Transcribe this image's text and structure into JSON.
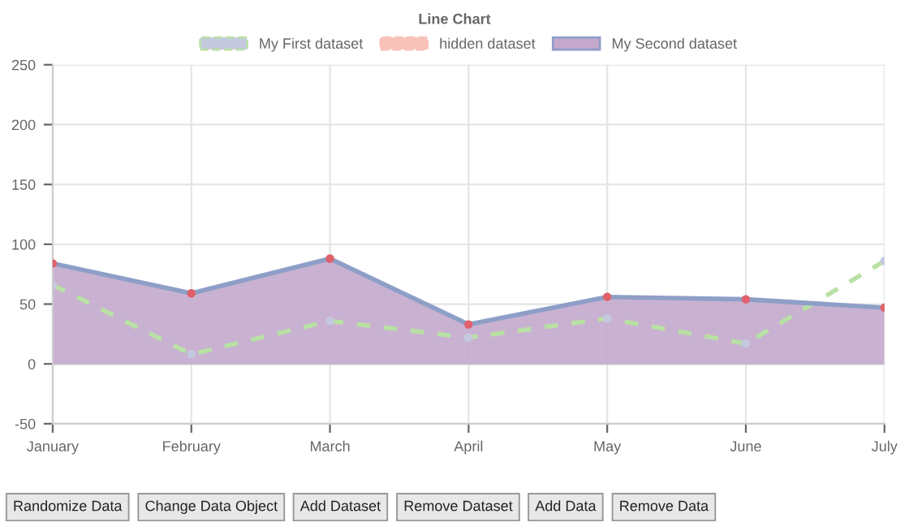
{
  "chart_data": {
    "type": "line",
    "title": "Line Chart",
    "categories": [
      "January",
      "February",
      "March",
      "April",
      "May",
      "June",
      "July"
    ],
    "series": [
      {
        "name": "My First dataset",
        "color": "#b9e0a5",
        "line_style": "dashed",
        "colors": [
          "#c5c9df",
          "#c5c9df",
          "#c5c9df",
          "#c5c9df",
          "#c5c9df",
          "#c5c9df",
          "#c5c9df"
        ],
        "values": [
          66,
          8,
          36,
          22,
          38,
          17,
          86
        ]
      },
      {
        "name": "hidden dataset",
        "color": "#f7c2b9",
        "values": [
          null,
          null,
          null,
          null,
          null,
          null,
          null
        ]
      },
      {
        "name": "My Second dataset",
        "type": "area",
        "color": "#c3a8cc",
        "line_style": "solid",
        "colors": [
          "#e0606b",
          "#e0606b",
          "#e0606b",
          "#e0606b",
          "#e0606b",
          "#e0606b",
          "#e0606b"
        ],
        "values": [
          84,
          59,
          88,
          33,
          56,
          54,
          47
        ]
      }
    ],
    "ylim": [
      -50,
      250
    ],
    "yticks": [
      -50,
      0,
      50,
      100,
      150,
      200,
      250
    ],
    "grid": true,
    "legend": "top",
    "marker": "circle",
    "annotations": [
      "Randomize Data",
      "Change Data Object",
      "Add Dataset",
      "Remove Dataset",
      "Add Data",
      "Remove Data"
    ]
  }
}
